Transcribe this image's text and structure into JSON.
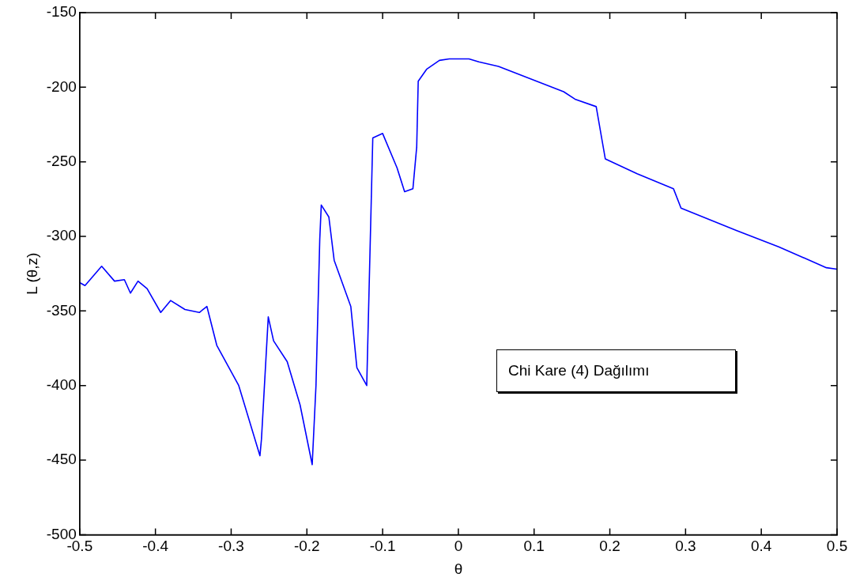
{
  "chart_data": {
    "type": "line",
    "xlabel": "θ",
    "ylabel": "L (θ,z)",
    "x": [
      -0.5,
      -0.493,
      -0.471,
      -0.454,
      -0.441,
      -0.433,
      -0.423,
      -0.411,
      -0.393,
      -0.38,
      -0.361,
      -0.342,
      -0.332,
      -0.319,
      -0.29,
      -0.262,
      -0.26,
      -0.251,
      -0.244,
      -0.226,
      -0.209,
      -0.193,
      -0.188,
      -0.183,
      -0.181,
      -0.171,
      -0.164,
      -0.142,
      -0.134,
      -0.121,
      -0.118,
      -0.113,
      -0.1,
      -0.081,
      -0.071,
      -0.06,
      -0.055,
      -0.053,
      -0.042,
      -0.025,
      -0.012,
      0.014,
      0.027,
      0.053,
      0.139,
      0.154,
      0.182,
      0.194,
      0.236,
      0.284,
      0.294,
      0.367,
      0.423,
      0.486,
      0.5
    ],
    "series": [
      {
        "color": "#0000ff",
        "values": [
          -331,
          -333,
          -320,
          -330,
          -329,
          -338,
          -330,
          -335,
          -351,
          -343,
          -349,
          -351,
          -347,
          -373,
          -400,
          -447,
          -436,
          -354,
          -370,
          -384,
          -413,
          -453,
          -400,
          -302,
          -279,
          -287,
          -316,
          -347,
          -388,
          -400,
          -338,
          -234,
          -231,
          -254,
          -270,
          -268,
          -240,
          -196,
          -188,
          -182,
          -181,
          -181,
          -183,
          -186,
          -203,
          -208,
          -213,
          -248,
          -258,
          -268,
          -281,
          -296,
          -307,
          -321,
          -322
        ]
      }
    ],
    "xlim": [
      -0.5,
      0.5
    ],
    "xticks": [
      -0.5,
      -0.4,
      -0.3,
      -0.2,
      -0.1,
      0,
      0.1,
      0.2,
      0.3,
      0.4,
      0.5
    ],
    "ylim": [
      -500,
      -150
    ],
    "yticks": [
      -500,
      -450,
      -400,
      -350,
      -300,
      -250,
      -200,
      -150
    ],
    "grid": false,
    "legend": false,
    "marker": "none",
    "line_style": "solid",
    "annotations": [
      "Chi Kare (4) Dağılımı"
    ]
  }
}
